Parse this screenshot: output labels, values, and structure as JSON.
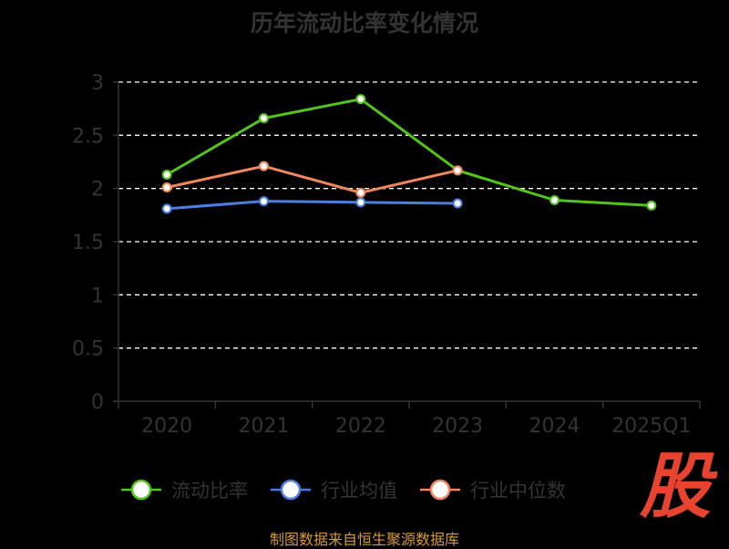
{
  "title": "历年流动比率变化情况",
  "source_text": "制图数据来自恒生聚源数据库",
  "watermark_text": "股",
  "colors": {
    "background": "#000000",
    "axis_text": "#333333",
    "grid": "#ffffff",
    "source": "#d49a33",
    "watermark": "#e8432e"
  },
  "chart_data": {
    "type": "line",
    "title": "历年流动比率变化情况",
    "categories": [
      "2020",
      "2021",
      "2022",
      "2023",
      "2024",
      "2025Q1"
    ],
    "y_ticks": [
      "0",
      "0.5",
      "1",
      "1.5",
      "2",
      "2.5",
      "3"
    ],
    "ylim": [
      0,
      3
    ],
    "grid": true,
    "legend_position": "bottom",
    "series": [
      {
        "name": "流动比率",
        "color": "#52c41a",
        "values": [
          2.13,
          2.66,
          2.84,
          2.17,
          1.89,
          1.84
        ]
      },
      {
        "name": "行业均值",
        "color": "#4a7ee0",
        "values": [
          1.81,
          1.88,
          1.87,
          1.86,
          null,
          null
        ]
      },
      {
        "name": "行业中位数",
        "color": "#f2875c",
        "values": [
          2.01,
          2.21,
          1.96,
          2.17,
          null,
          null
        ]
      }
    ]
  }
}
